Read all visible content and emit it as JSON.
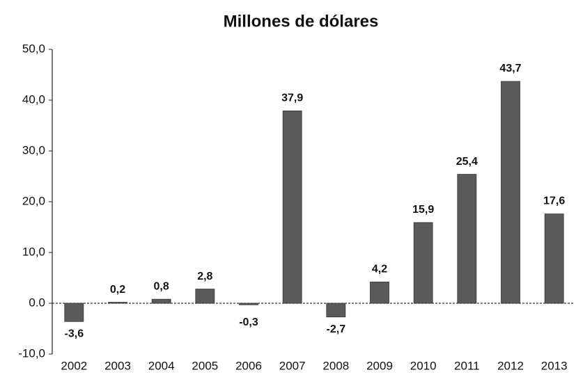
{
  "chart_data": {
    "type": "bar",
    "title": "Millones de dólares",
    "categories": [
      "2002",
      "2003",
      "2004",
      "2005",
      "2006",
      "2007",
      "2008",
      "2009",
      "2010",
      "2011",
      "2012",
      "2013"
    ],
    "values": [
      -3.6,
      0.2,
      0.8,
      2.8,
      -0.3,
      37.9,
      -2.7,
      4.2,
      15.9,
      25.4,
      43.7,
      17.6
    ],
    "value_labels": [
      "-3,6",
      "0,2",
      "0,8",
      "2,8",
      "-0,3",
      "37,9",
      "-2,7",
      "4,2",
      "15,9",
      "25,4",
      "43,7",
      "17,6"
    ],
    "color": "#5a5a5a",
    "ylim": [
      -10,
      50
    ],
    "yticks": [
      {
        "value": -10,
        "label": "-10,0"
      },
      {
        "value": 0,
        "label": "0.0"
      },
      {
        "value": 10,
        "label": "10,0"
      },
      {
        "value": 20,
        "label": "20,0"
      },
      {
        "value": 30,
        "label": "30,0"
      },
      {
        "value": 40,
        "label": "40,0"
      },
      {
        "value": 50,
        "label": "50,0"
      }
    ],
    "grid": false
  }
}
